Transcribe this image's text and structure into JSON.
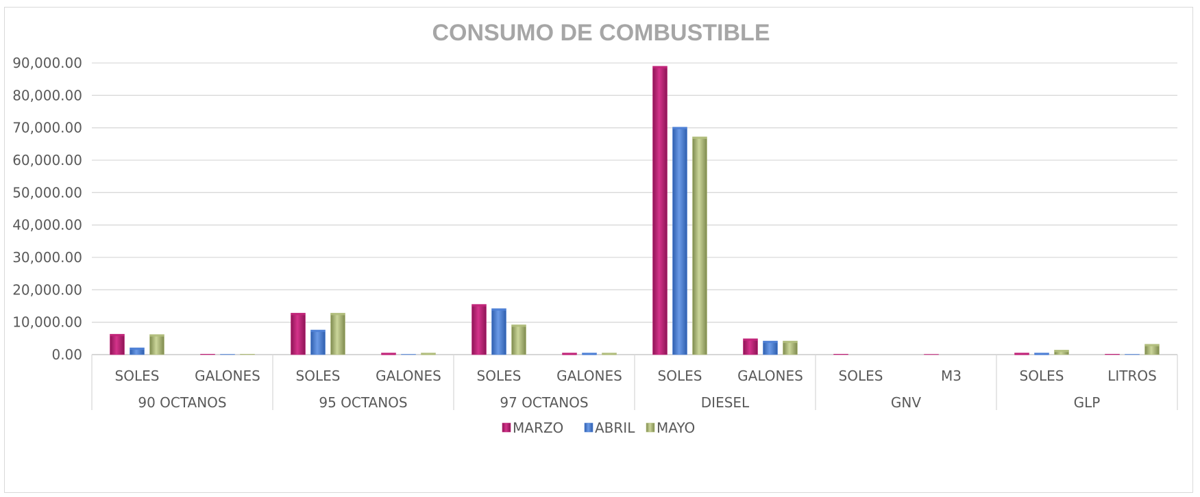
{
  "chart_data": {
    "type": "bar",
    "title": "CONSUMO DE COMBUSTIBLE",
    "xlabel": "",
    "ylabel": "",
    "ylim": [
      0,
      90000
    ],
    "y_ticks": [
      "0.00",
      "10,000.00",
      "20,000.00",
      "30,000.00",
      "40,000.00",
      "50,000.00",
      "60,000.00",
      "70,000.00",
      "80,000.00",
      "90,000.00"
    ],
    "groups": [
      {
        "label": "90 OCTANOS",
        "categories": [
          "SOLES",
          "GALONES"
        ]
      },
      {
        "label": "95 OCTANOS",
        "categories": [
          "SOLES",
          "GALONES"
        ]
      },
      {
        "label": "97 OCTANOS",
        "categories": [
          "SOLES",
          "GALONES"
        ]
      },
      {
        "label": "DIESEL",
        "categories": [
          "SOLES",
          "GALONES"
        ]
      },
      {
        "label": "GNV",
        "categories": [
          "SOLES",
          "M3"
        ]
      },
      {
        "label": "GLP",
        "categories": [
          "SOLES",
          "LITROS"
        ]
      }
    ],
    "series": [
      {
        "name": "MARZO",
        "color": "#c2267a",
        "values": [
          6300,
          150,
          12800,
          500,
          15500,
          500,
          89000,
          4900,
          150,
          100,
          500,
          150
        ]
      },
      {
        "name": "ABRIL",
        "color": "#4f81d6",
        "values": [
          2100,
          100,
          7600,
          100,
          14200,
          500,
          70200,
          4200,
          0,
          0,
          500,
          100
        ]
      },
      {
        "name": "MAYO",
        "color": "#b3bf7e",
        "values": [
          6200,
          150,
          12800,
          500,
          9200,
          500,
          67200,
          4200,
          0,
          0,
          1400,
          3200
        ]
      }
    ],
    "legend_position": "bottom",
    "grid": true
  }
}
